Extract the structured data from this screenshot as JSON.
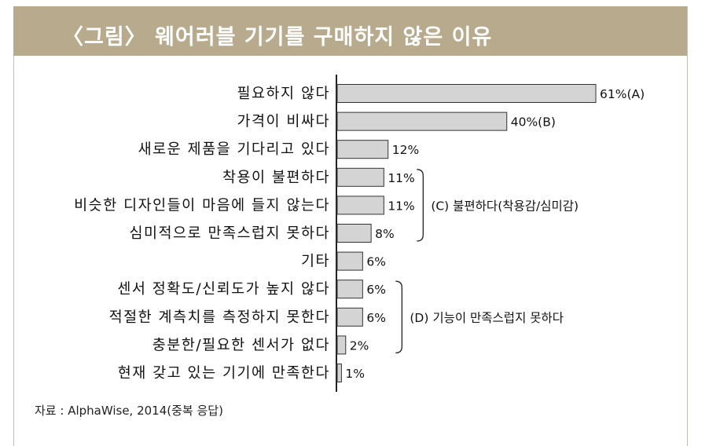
{
  "header": {
    "title": "〈그림〉 웨어러블 기기를 구매하지 않은 이유"
  },
  "source": "자료 : AlphaWise, 2014(중복 응답)",
  "colors": {
    "title_bar": "#b8aa8c",
    "bar_fill": "#d4d4d4",
    "bar_stroke": "#333333"
  },
  "chart_data": {
    "type": "bar",
    "orientation": "horizontal",
    "categories": [
      "필요하지 않다",
      "가격이 비싸다",
      "새로운 제품을 기다리고 있다",
      "착용이 불편하다",
      "비슷한 디자인들이 마음에 들지 않는다",
      "심미적으로 만족스럽지 못하다",
      "기타",
      "센서 정확도/신뢰도가 높지 않다",
      "적절한 계측치를 측정하지 못한다",
      "충분한/필요한 센서가 없다",
      "현재 갖고 있는 기기에 만족한다"
    ],
    "values": [
      61,
      40,
      12,
      11,
      11,
      8,
      6,
      6,
      6,
      2,
      1
    ],
    "value_labels": [
      "61%(A)",
      "40%(B)",
      "12%",
      "11%",
      "11%",
      "8%",
      "6%",
      "6%",
      "6%",
      "2%",
      "1%"
    ],
    "groups": [
      {
        "label": "(C) 불편하다(착용감/심미감)",
        "from": 3,
        "to": 5
      },
      {
        "label": "(D) 기능이 만족스럽지 못하다",
        "from": 7,
        "to": 9
      }
    ],
    "xlim": [
      0,
      61
    ],
    "grid": false,
    "legend": "none"
  }
}
